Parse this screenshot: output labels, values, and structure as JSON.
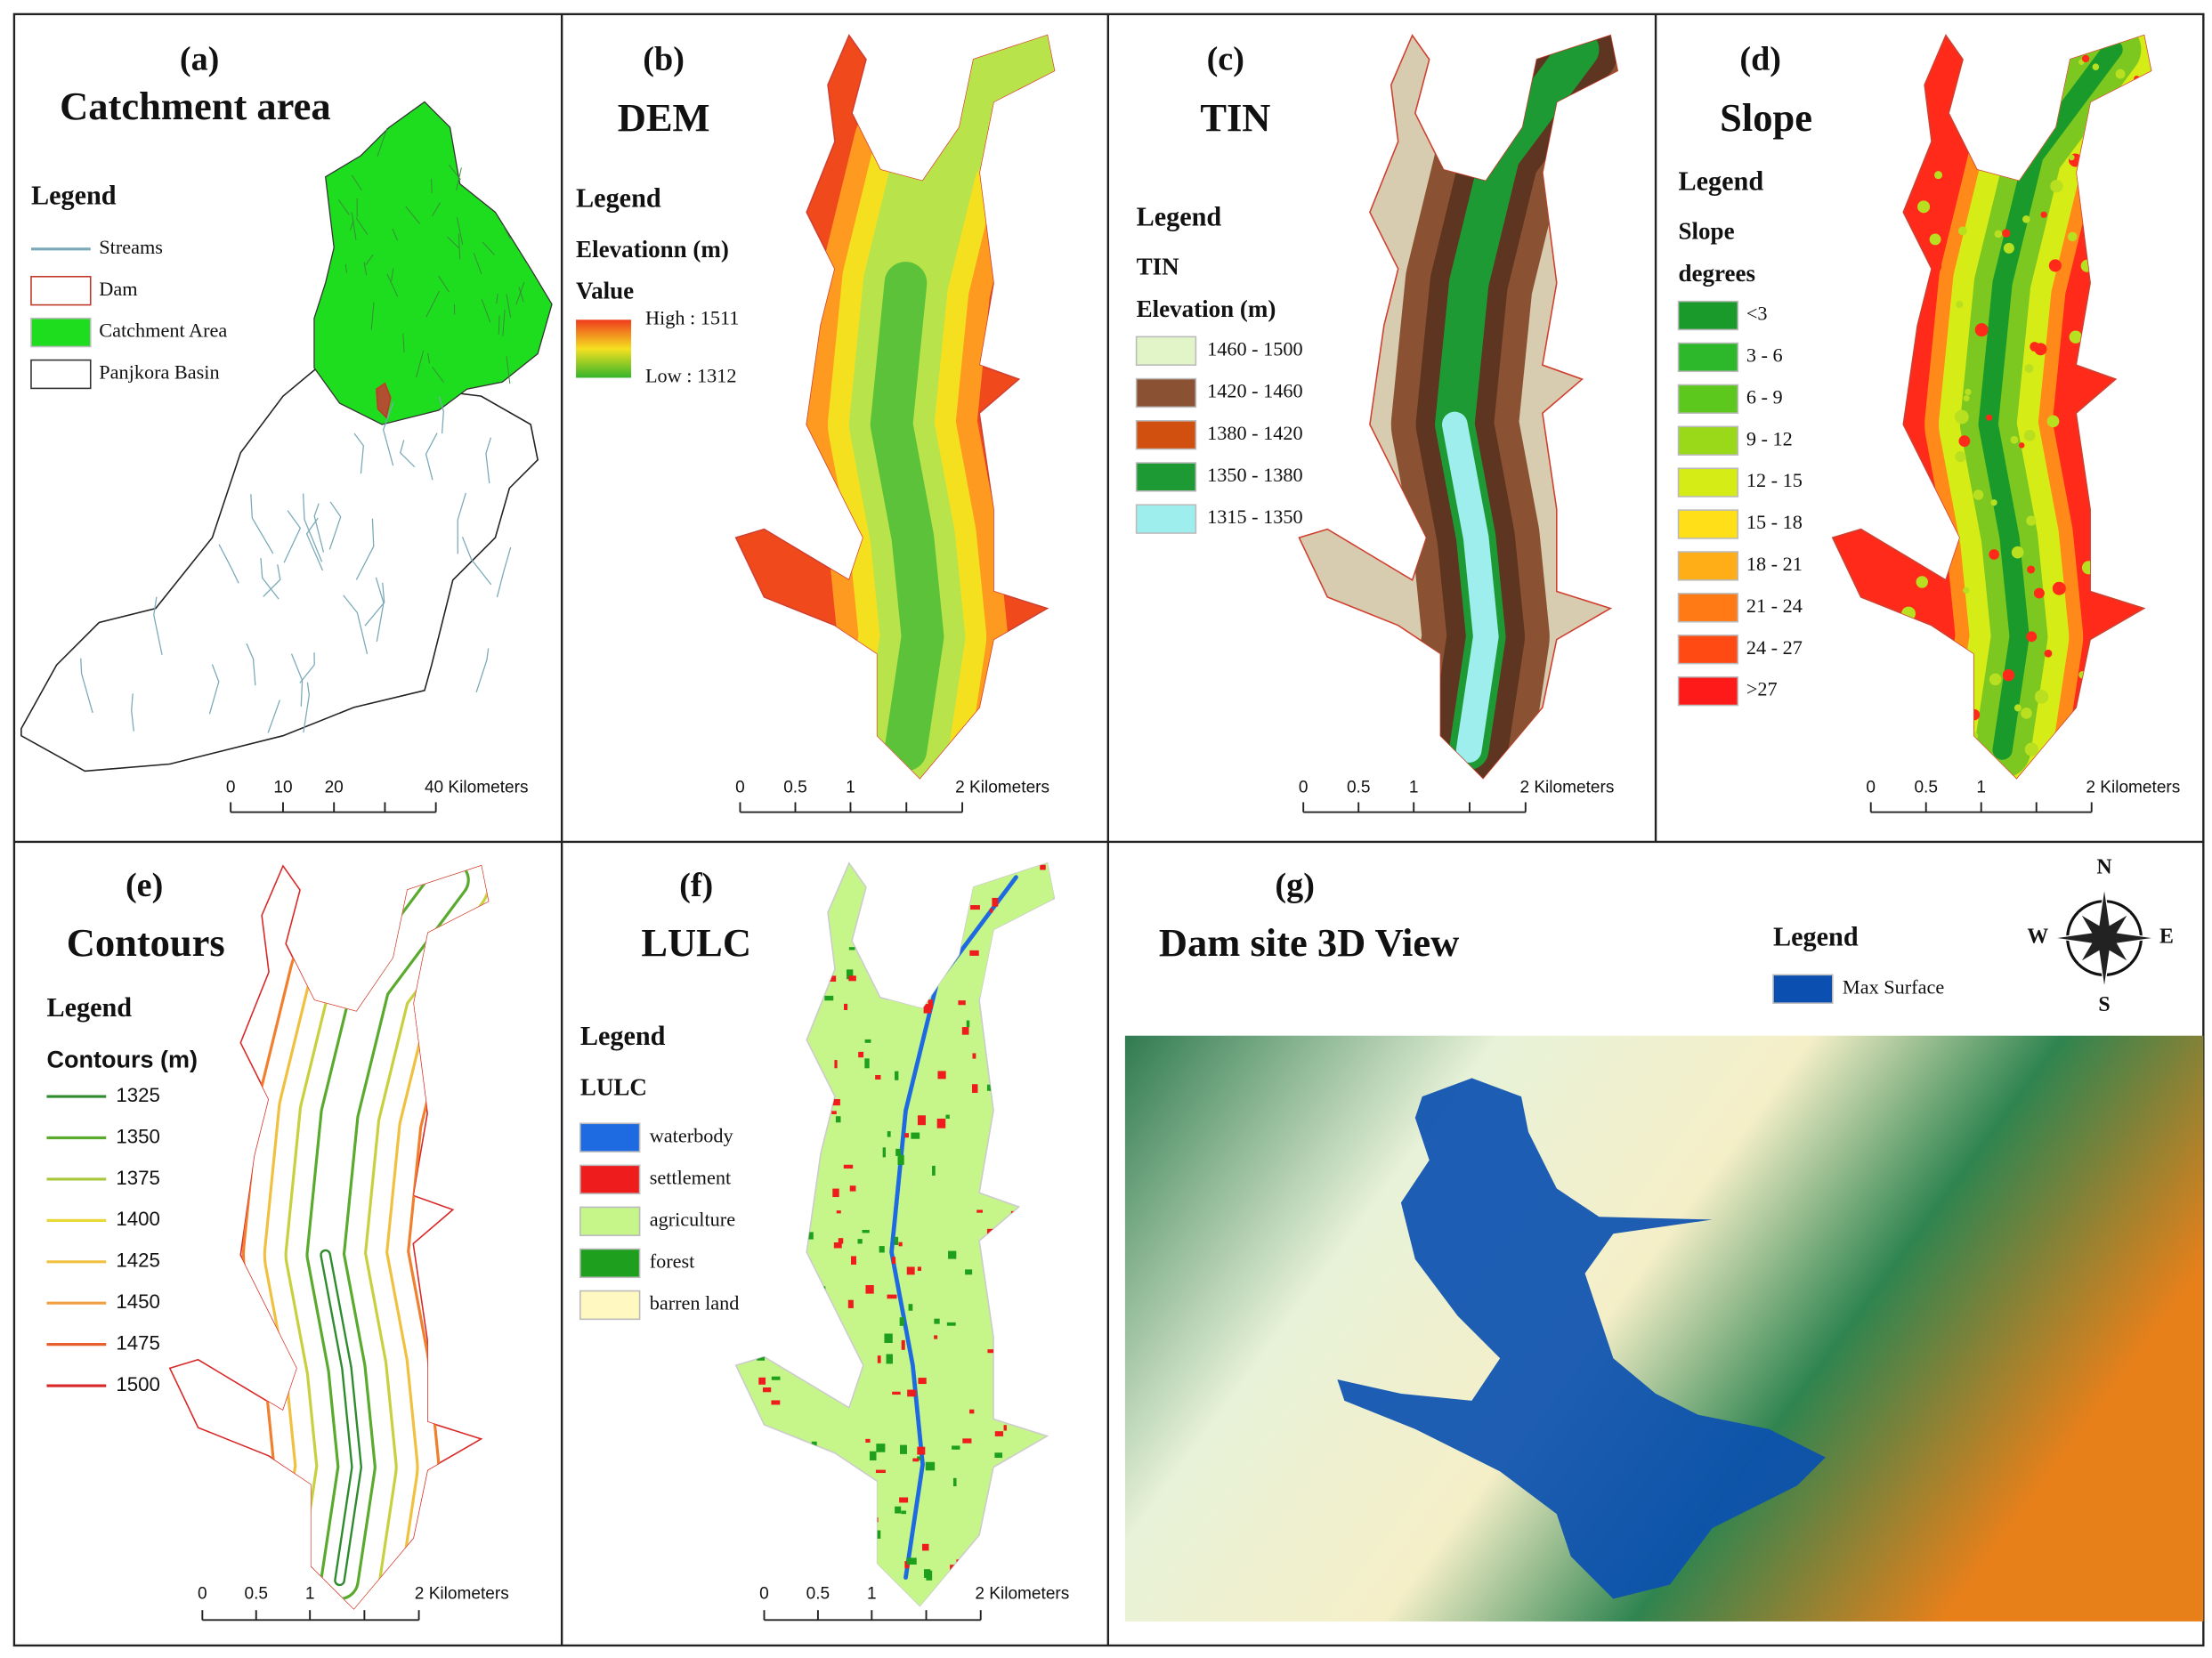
{
  "panels": [
    {
      "label": "(a)",
      "title": "Catchment area",
      "legend_title": "Legend",
      "legend_subtitles": [],
      "legend": [
        {
          "label": "Streams",
          "line_color": "#7aa9b8"
        },
        {
          "label": "Dam",
          "outline": "#c0392b"
        },
        {
          "label": "Catchment Area",
          "color": "#1edc1e"
        },
        {
          "label": "Panjkora Basin",
          "outline": "#333333"
        }
      ],
      "scale": [
        "0",
        "10",
        "20",
        "40 Kilometers"
      ]
    },
    {
      "label": "(b)",
      "title": "DEM",
      "legend_title": "Legend",
      "legend_subtitles": [
        "Elevationn (m)",
        "Value"
      ],
      "legend": [
        {
          "label": "High : 1511",
          "color": "#ef3b1c"
        },
        {
          "label": "Low : 1312",
          "color": "#35b52a"
        }
      ],
      "scale": [
        "0",
        "0.5",
        "1",
        "2 Kilometers"
      ]
    },
    {
      "label": "(c)",
      "title": "TIN",
      "legend_title": "Legend",
      "legend_subtitles": [
        "TIN",
        "Elevation (m)"
      ],
      "legend": [
        {
          "label": "1460 - 1500",
          "color": "#e2f5c8"
        },
        {
          "label": "1420 - 1460",
          "color": "#8a5233"
        },
        {
          "label": "1380 - 1420",
          "color": "#d2500f"
        },
        {
          "label": "1350 - 1380",
          "color": "#1e9a35"
        },
        {
          "label": "1315 - 1350",
          "color": "#9eeeee"
        }
      ],
      "scale": [
        "0",
        "0.5",
        "1",
        "2 Kilometers"
      ]
    },
    {
      "label": "(d)",
      "title": "Slope",
      "legend_title": "Legend",
      "legend_subtitles": [
        "Slope",
        "degrees"
      ],
      "legend": [
        {
          "label": "<3",
          "color": "#1a9a2a"
        },
        {
          "label": "3 - 6",
          "color": "#2cb82a"
        },
        {
          "label": "6 - 9",
          "color": "#5cc81e"
        },
        {
          "label": "9 - 12",
          "color": "#9ad81a"
        },
        {
          "label": "12 - 15",
          "color": "#d6ec16"
        },
        {
          "label": "15 - 18",
          "color": "#ffe018"
        },
        {
          "label": "18 - 21",
          "color": "#ffae18"
        },
        {
          "label": "21 - 24",
          "color": "#ff7a14"
        },
        {
          "label": "24 - 27",
          "color": "#ff4a14"
        },
        {
          "label": ">27",
          "color": "#ff1a1a"
        }
      ],
      "scale": [
        "0",
        "0.5",
        "1",
        "2 Kilometers"
      ]
    },
    {
      "label": "(e)",
      "title": "Contours",
      "legend_title": "Legend",
      "legend_subtitles": [
        "Contours (m)"
      ],
      "legend": [
        {
          "label": "1325",
          "line_color": "#2e8b2e"
        },
        {
          "label": "1350",
          "line_color": "#5aaa2e"
        },
        {
          "label": "1375",
          "line_color": "#a8c83a"
        },
        {
          "label": "1400",
          "line_color": "#e8d83a"
        },
        {
          "label": "1425",
          "line_color": "#f0c040"
        },
        {
          "label": "1450",
          "line_color": "#f0a040"
        },
        {
          "label": "1475",
          "line_color": "#e8602e"
        },
        {
          "label": "1500",
          "line_color": "#d82828"
        }
      ],
      "scale": [
        "0",
        "0.5",
        "1",
        "2 Kilometers"
      ]
    },
    {
      "label": "(f)",
      "title": "LULC",
      "legend_title": "Legend",
      "legend_subtitles": [
        "LULC"
      ],
      "legend": [
        {
          "label": "waterbody",
          "color": "#1e6ae0"
        },
        {
          "label": "settlement",
          "color": "#ee1c1c"
        },
        {
          "label": "agriculture",
          "color": "#c6f58a"
        },
        {
          "label": "forest",
          "color": "#1ea01e"
        },
        {
          "label": "barren land",
          "color": "#fff8c0"
        }
      ],
      "scale": [
        "0",
        "0.5",
        "1",
        "2 Kilometers"
      ]
    },
    {
      "label": "(g)",
      "title": "Dam site 3D View",
      "legend_title": "Legend",
      "legend_subtitles": [],
      "legend": [
        {
          "label": "Max Surface",
          "color": "#0b50b0"
        }
      ],
      "compass": {
        "n": "N",
        "s": "S",
        "e": "E",
        "w": "W"
      }
    }
  ]
}
